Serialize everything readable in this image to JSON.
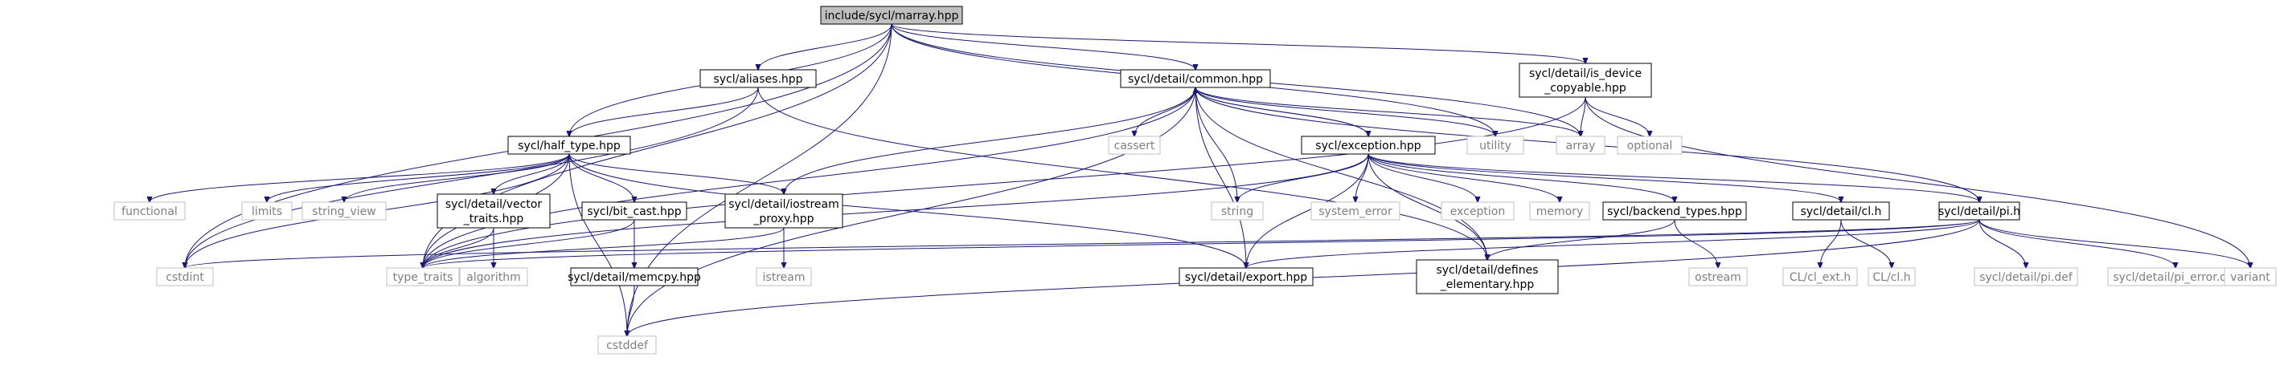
{
  "graph": {
    "title": "include/sycl/marray.hpp",
    "nodes": {
      "marray": "include/sycl/marray.hpp",
      "aliases": "sycl/aliases.hpp",
      "common": "sycl/detail/common.hpp",
      "isdev": [
        "sycl/detail/is_device",
        "_copyable.hpp"
      ],
      "half": "sycl/half_type.hpp",
      "cassert": "cassert",
      "utility": "utility",
      "array": "array",
      "optional": "optional",
      "exception": "sycl/exception.hpp",
      "functional": "functional",
      "limits": "limits",
      "string_view": "string_view",
      "vector": [
        "sycl/detail/vector",
        "_traits.hpp"
      ],
      "bitcast": "sycl/bit_cast.hpp",
      "iostream": [
        "sycl/detail/iostream",
        "_proxy.hpp"
      ],
      "string": "string",
      "system_error": "system_error",
      "exception_std": "exception",
      "memory": "memory",
      "backend": "sycl/backend_types.hpp",
      "cl": "sycl/detail/cl.h",
      "pi": "sycl/detail/pi.h",
      "cstdint": "cstdint",
      "type_traits": "type_traits",
      "algorithm": "algorithm",
      "memcpy": "sycl/detail/memcpy.hpp",
      "istream": "istream",
      "export": "sycl/detail/export.hpp",
      "defines": [
        "sycl/detail/defines",
        "_elementary.hpp"
      ],
      "ostream": "ostream",
      "clext": "CL/cl_ext.h",
      "clh": "CL/cl.h",
      "pidef": "sycl/detail/pi.def",
      "pierror": "sycl/detail/pi_error.def",
      "variant": "variant",
      "cstddef": "cstddef"
    }
  },
  "colors": {
    "edge": "#191970",
    "node_border": "#000000",
    "system_border": "#bfbfbf",
    "system_text": "#7f7f7f",
    "root_fill": "#bfbfbf"
  }
}
